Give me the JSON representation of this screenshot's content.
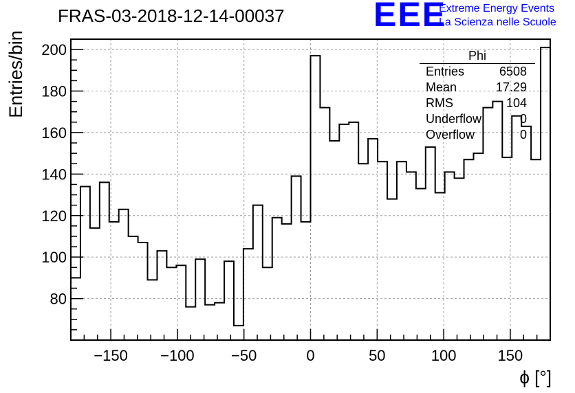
{
  "chart_data": {
    "type": "histogram",
    "title": "FRAS-03-2018-12-14-00037",
    "xlabel": "ϕ [°]",
    "ylabel": "Entries/bin",
    "xlim": [
      -180,
      180
    ],
    "ylim": [
      60,
      205
    ],
    "grid": true,
    "bin_width": 7.2,
    "x_ticks": [
      -150,
      -100,
      -50,
      0,
      50,
      100,
      150
    ],
    "x_tick_labels": [
      "−150",
      "−100",
      "−50",
      "0",
      "50",
      "100",
      "150"
    ],
    "y_ticks": [
      80,
      100,
      120,
      140,
      160,
      180,
      200
    ],
    "y_tick_labels": [
      "80",
      "100",
      "120",
      "140",
      "160",
      "180",
      "200"
    ],
    "values": [
      90,
      134,
      114,
      136,
      117,
      123,
      110,
      107,
      89,
      103,
      95,
      96,
      76,
      99,
      77,
      78,
      98,
      67,
      104,
      125,
      95,
      119,
      116,
      139,
      117,
      197,
      172,
      156,
      164,
      165,
      145,
      157,
      146,
      128,
      146,
      141,
      133,
      153,
      131,
      141,
      138,
      147,
      150,
      172,
      175,
      148,
      168,
      163,
      147,
      201
    ],
    "stats": {
      "name": "Phi",
      "rows": [
        {
          "label": "Entries",
          "value": "6508"
        },
        {
          "label": "Mean",
          "value": "17.29"
        },
        {
          "label": "RMS",
          "value": "104"
        },
        {
          "label": "Underflow",
          "value": "0"
        },
        {
          "label": "Overflow",
          "value": "0"
        }
      ]
    }
  },
  "logo": {
    "text": "EEE",
    "line1": "Extreme Energy Events",
    "line2": "La Scienza nelle Scuole",
    "color": "#0000ff"
  }
}
